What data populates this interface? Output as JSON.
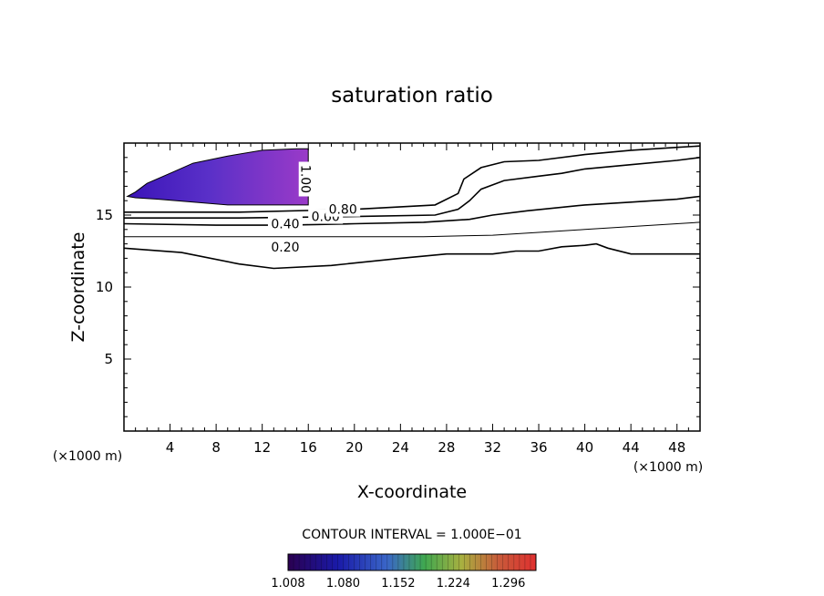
{
  "chart_data": {
    "type": "contour",
    "title": "saturation ratio",
    "xlabel": "X-coordinate",
    "ylabel": "Z-coordinate",
    "x_unit_left": "(×1000 m)",
    "x_unit_right": "(×1000 m)",
    "xlim": [
      0,
      50
    ],
    "ylim": [
      0,
      20
    ],
    "xticks": [
      4,
      8,
      12,
      16,
      20,
      24,
      28,
      32,
      36,
      40,
      44,
      48
    ],
    "yticks": [
      5,
      10,
      15
    ],
    "contour_labels": [
      "0.20",
      "0.40",
      "0.60",
      "0.80",
      "1.00"
    ],
    "contour_interval_text": "CONTOUR INTERVAL = 1.000E−01",
    "colorbar": {
      "min": 1.008,
      "max": 1.332,
      "tick_labels": [
        "1.008",
        "1.080",
        "1.152",
        "1.224",
        "1.296"
      ]
    },
    "contours": [
      {
        "level": 0.2,
        "points": [
          [
            0,
            12.7
          ],
          [
            5,
            12.4
          ],
          [
            10,
            11.6
          ],
          [
            13,
            11.3
          ],
          [
            18,
            11.5
          ],
          [
            24,
            12.0
          ],
          [
            28,
            12.3
          ],
          [
            32,
            12.3
          ],
          [
            34,
            12.5
          ],
          [
            36,
            12.5
          ],
          [
            38,
            12.8
          ],
          [
            40,
            12.9
          ],
          [
            41,
            13.0
          ],
          [
            42,
            12.7
          ],
          [
            44,
            12.3
          ],
          [
            50,
            12.3
          ]
        ]
      },
      {
        "level": 0.3,
        "points": [
          [
            0,
            13.5
          ],
          [
            10,
            13.5
          ],
          [
            18,
            13.5
          ],
          [
            26,
            13.5
          ],
          [
            32,
            13.6
          ],
          [
            36,
            13.8
          ],
          [
            40,
            14.0
          ],
          [
            44,
            14.2
          ],
          [
            48,
            14.4
          ],
          [
            50,
            14.5
          ]
        ]
      },
      {
        "level": 0.4,
        "points": [
          [
            0,
            14.4
          ],
          [
            8,
            14.3
          ],
          [
            14,
            14.3
          ],
          [
            20,
            14.4
          ],
          [
            26,
            14.5
          ],
          [
            30,
            14.7
          ],
          [
            32,
            15.0
          ],
          [
            35,
            15.3
          ],
          [
            40,
            15.7
          ],
          [
            44,
            15.9
          ],
          [
            48,
            16.1
          ],
          [
            50,
            16.3
          ]
        ]
      },
      {
        "level": 0.6,
        "points": [
          [
            0,
            14.8
          ],
          [
            10,
            14.8
          ],
          [
            20,
            14.9
          ],
          [
            27,
            15.0
          ],
          [
            29,
            15.4
          ],
          [
            30,
            16.0
          ],
          [
            31,
            16.8
          ],
          [
            33,
            17.4
          ],
          [
            36,
            17.7
          ],
          [
            38,
            17.9
          ],
          [
            40,
            18.2
          ],
          [
            44,
            18.5
          ],
          [
            48,
            18.8
          ],
          [
            50,
            19.0
          ]
        ]
      },
      {
        "level": 0.8,
        "points": [
          [
            0,
            15.2
          ],
          [
            10,
            15.2
          ],
          [
            20,
            15.4
          ],
          [
            27,
            15.7
          ],
          [
            29,
            16.5
          ],
          [
            29.5,
            17.5
          ],
          [
            31,
            18.3
          ],
          [
            33,
            18.7
          ],
          [
            36,
            18.8
          ],
          [
            40,
            19.2
          ],
          [
            44,
            19.5
          ],
          [
            48,
            19.7
          ],
          [
            50,
            19.8
          ]
        ]
      }
    ],
    "supersat_region": [
      [
        0.3,
        16.3
      ],
      [
        1,
        16.6
      ],
      [
        2,
        17.2
      ],
      [
        4,
        17.9
      ],
      [
        6,
        18.6
      ],
      [
        9,
        19.1
      ],
      [
        12,
        19.5
      ],
      [
        15,
        19.6
      ],
      [
        16,
        19.6
      ],
      [
        16,
        15.7
      ],
      [
        13,
        15.7
      ],
      [
        9,
        15.7
      ],
      [
        6,
        15.9
      ],
      [
        3,
        16.1
      ],
      [
        1,
        16.2
      ]
    ]
  }
}
